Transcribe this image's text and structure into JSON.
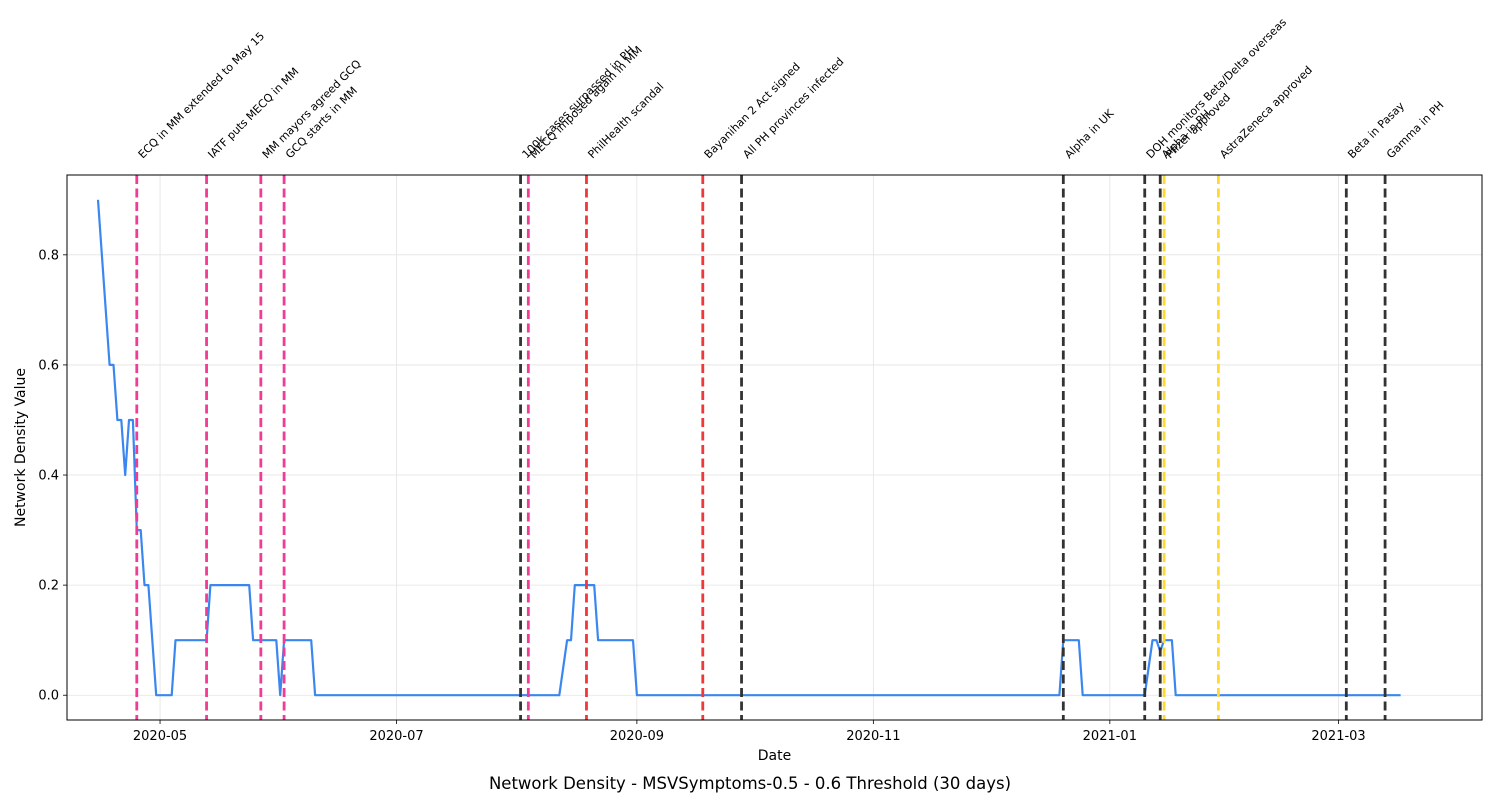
{
  "chart_data": {
    "type": "line",
    "title": "Network Density - MSVSymptoms-0.5 - 0.6 Threshold (30 days)",
    "xlabel": "Date",
    "ylabel": "Network Density Value",
    "xlim": [
      "2020-04-07",
      "2021-04-07"
    ],
    "ylim": [
      -0.045,
      0.945
    ],
    "grid": true,
    "x_ticks": [
      "2020-05",
      "2020-07",
      "2020-09",
      "2020-11",
      "2021-01",
      "2021-03"
    ],
    "y_ticks": [
      "0.0",
      "0.2",
      "0.4",
      "0.6",
      "0.8"
    ],
    "series": [
      {
        "color": "#3b87f0",
        "points": [
          [
            "2020-04-15",
            0.9
          ],
          [
            "2020-04-18",
            0.6
          ],
          [
            "2020-04-19",
            0.6
          ],
          [
            "2020-04-20",
            0.5
          ],
          [
            "2020-04-21",
            0.5
          ],
          [
            "2020-04-22",
            0.4
          ],
          [
            "2020-04-23",
            0.5
          ],
          [
            "2020-04-24",
            0.5
          ],
          [
            "2020-04-25",
            0.3
          ],
          [
            "2020-04-26",
            0.3
          ],
          [
            "2020-04-27",
            0.2
          ],
          [
            "2020-04-28",
            0.2
          ],
          [
            "2020-04-30",
            0.0
          ],
          [
            "2020-05-04",
            0.0
          ],
          [
            "2020-05-05",
            0.1
          ],
          [
            "2020-05-13",
            0.1
          ],
          [
            "2020-05-14",
            0.2
          ],
          [
            "2020-05-24",
            0.2
          ],
          [
            "2020-05-25",
            0.1
          ],
          [
            "2020-05-31",
            0.1
          ],
          [
            "2020-06-01",
            0.0
          ],
          [
            "2020-06-02",
            0.1
          ],
          [
            "2020-06-09",
            0.1
          ],
          [
            "2020-06-10",
            0.0
          ],
          [
            "2020-08-12",
            0.0
          ],
          [
            "2020-08-14",
            0.1
          ],
          [
            "2020-08-15",
            0.1
          ],
          [
            "2020-08-16",
            0.2
          ],
          [
            "2020-08-21",
            0.2
          ],
          [
            "2020-08-22",
            0.1
          ],
          [
            "2020-08-31",
            0.1
          ],
          [
            "2020-09-01",
            0.0
          ],
          [
            "2020-12-19",
            0.0
          ],
          [
            "2020-12-20",
            0.1
          ],
          [
            "2020-12-24",
            0.1
          ],
          [
            "2020-12-25",
            0.0
          ],
          [
            "2021-01-10",
            0.0
          ],
          [
            "2021-01-12",
            0.1
          ],
          [
            "2021-01-13",
            0.1
          ],
          [
            "2021-01-14",
            0.08
          ],
          [
            "2021-01-15",
            0.1
          ],
          [
            "2021-01-17",
            0.1
          ],
          [
            "2021-01-18",
            0.0
          ],
          [
            "2021-03-17",
            0.0
          ]
        ]
      }
    ],
    "events": [
      {
        "date": "2020-04-25",
        "label": "ECQ in MM extended to May 15",
        "color": "#f03c96"
      },
      {
        "date": "2020-05-13",
        "label": "IATF puts MECQ in MM",
        "color": "#f03c96"
      },
      {
        "date": "2020-05-27",
        "label": "MM mayors agreed GCQ",
        "color": "#f03c96"
      },
      {
        "date": "2020-06-02",
        "label": "GCQ starts in MM",
        "color": "#f03c96"
      },
      {
        "date": "2020-08-02",
        "label": "100k cases surpassed in PH",
        "color": "#333333"
      },
      {
        "date": "2020-08-04",
        "label": "MECQ imposed again in MM",
        "color": "#f03c96"
      },
      {
        "date": "2020-08-19",
        "label": "PhilHealth scandal",
        "color": "#f03838"
      },
      {
        "date": "2020-09-18",
        "label": "Bayanihan 2 Act signed",
        "color": "#f03838"
      },
      {
        "date": "2020-09-28",
        "label": "All PH provinces infected",
        "color": "#333333"
      },
      {
        "date": "2020-12-20",
        "label": "Alpha in UK",
        "color": "#333333"
      },
      {
        "date": "2021-01-10",
        "label": "DOH monitors Beta/Delta overseas",
        "color": "#333333"
      },
      {
        "date": "2021-01-14",
        "label": "Alpha in PH",
        "color": "#333333"
      },
      {
        "date": "2021-01-15",
        "label": "Pfizer approved",
        "color": "#ffd931"
      },
      {
        "date": "2021-01-29",
        "label": "AstraZeneca approved",
        "color": "#ffd931"
      },
      {
        "date": "2021-03-03",
        "label": "Beta in Pasay",
        "color": "#333333"
      },
      {
        "date": "2021-03-13",
        "label": "Gamma in PH",
        "color": "#333333"
      }
    ]
  }
}
